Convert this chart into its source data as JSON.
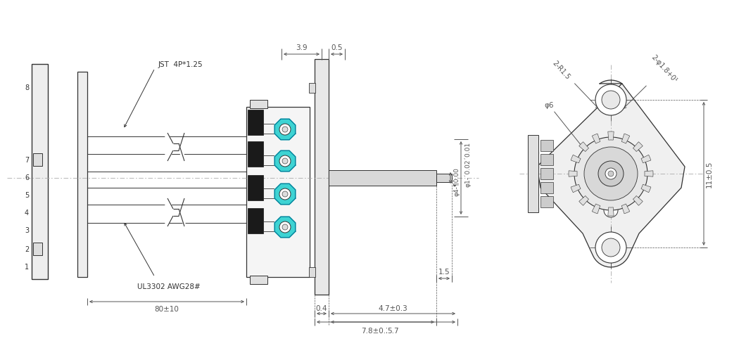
{
  "bg_color": "#ffffff",
  "line_color": "#333333",
  "dim_color": "#555555",
  "cyan_color": "#00c8c8",
  "fig_width": 10.4,
  "fig_height": 4.63,
  "labels": {
    "jst": "JST  4P*1.25",
    "ul": "UL3302 AWG28#",
    "dim_80": "80±10",
    "dim_39": "3.9",
    "dim_05": "0.5",
    "dim_04": "0.4",
    "dim_78": "7.8±0.2",
    "dim_15": "1.5",
    "dim_47": "4.7±0.3",
    "dim_57": "5.7",
    "dim_d1": "φ1-´0.02´0.01",
    "dim_d4": "φ4-¶0.00",
    "dim_r15": "2-R1.5",
    "dim_phi18": "2-φ1.8+0¹",
    "dim_phi6": "φ6",
    "dim_11": "11±0.5"
  }
}
